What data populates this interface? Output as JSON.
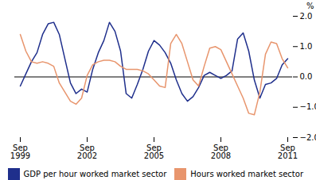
{
  "chart_data": {
    "type": "line",
    "ylabel": "%",
    "categories": [
      "Sep\n1999",
      null,
      null,
      null,
      null,
      null,
      null,
      null,
      null,
      null,
      null,
      null,
      "Sep\n2002",
      null,
      null,
      null,
      null,
      null,
      null,
      null,
      null,
      null,
      null,
      null,
      "Sep\n2005",
      null,
      null,
      null,
      null,
      null,
      null,
      null,
      null,
      null,
      null,
      null,
      "Sep\n2008",
      null,
      null,
      null,
      null,
      null,
      null,
      null,
      null,
      null,
      null,
      null,
      "Sep\n2011"
    ],
    "series": [
      {
        "name": "GDP per hour worked market sector",
        "color": "#1f2f8c",
        "values": [
          -0.3,
          0.1,
          0.5,
          0.8,
          1.4,
          1.75,
          1.8,
          1.4,
          0.6,
          -0.2,
          -0.55,
          -0.4,
          -0.5,
          0.25,
          0.8,
          1.2,
          1.8,
          1.5,
          0.85,
          -0.55,
          -0.7,
          -0.25,
          0.25,
          0.85,
          1.2,
          1.05,
          0.8,
          0.45,
          -0.1,
          -0.55,
          -0.8,
          -0.65,
          -0.35,
          0.05,
          0.15,
          0.05,
          -0.05,
          0.05,
          0.2,
          1.25,
          1.45,
          0.85,
          -0.1,
          -0.7,
          -0.25,
          -0.2,
          -0.05,
          0.4,
          0.6
        ]
      },
      {
        "name": "Hours worked market sector",
        "color": "#e8956d",
        "values": [
          1.4,
          0.85,
          0.5,
          0.45,
          0.5,
          0.45,
          0.35,
          -0.2,
          -0.5,
          -0.8,
          -0.9,
          -0.7,
          0.05,
          0.4,
          0.5,
          0.55,
          0.55,
          0.5,
          0.35,
          0.25,
          0.25,
          0.25,
          0.2,
          0.1,
          -0.1,
          -0.3,
          -0.35,
          1.1,
          1.4,
          1.1,
          0.5,
          -0.1,
          -0.3,
          0.35,
          0.95,
          1.0,
          0.9,
          0.5,
          0.1,
          -0.3,
          -0.7,
          -1.2,
          -1.25,
          -0.5,
          0.75,
          1.15,
          1.1,
          0.6,
          0.3
        ]
      }
    ],
    "ylim": [
      -2.0,
      2.0
    ],
    "yticks": [
      -2,
      -1,
      0,
      1,
      2
    ],
    "grid": false,
    "legend": "lower right"
  }
}
